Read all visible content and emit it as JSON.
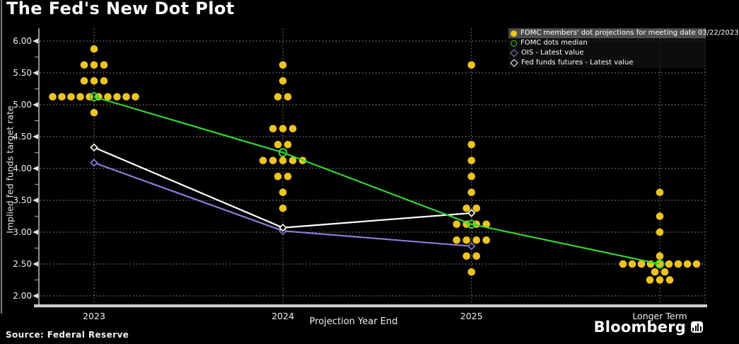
{
  "title": "The Fed's New Dot Plot",
  "source": "Source: Federal Reserve",
  "branding": {
    "logo": "Bloomberg",
    "logo_icon": "bar-chart-icon"
  },
  "legend": {
    "items": [
      {
        "marker": "filled-circle",
        "color": "#edc41e",
        "label": "FOMC members' dot projections for meeting date 03/22/2023",
        "highlighted": true
      },
      {
        "marker": "open-circle",
        "color": "#35d435",
        "label": "FOMC dots median",
        "highlighted": false
      },
      {
        "marker": "open-diamond",
        "color": "#8d7cd6",
        "label": "OIS - Latest value",
        "highlighted": false
      },
      {
        "marker": "open-diamond",
        "color": "#ffffff",
        "label": "Fed funds futures - Latest value",
        "highlighted": false
      }
    ]
  },
  "chart_data": {
    "type": "scatter",
    "title": "The Fed's New Dot Plot",
    "xlabel": "Projection Year End",
    "ylabel": "Implied fed funds target rate",
    "ylim": [
      2.0,
      6.0
    ],
    "ytick_step": 0.5,
    "ytick_labels": [
      "6.00",
      "5.50",
      "5.00",
      "4.50",
      "4.00",
      "3.50",
      "3.00",
      "2.50",
      "2.00"
    ],
    "categories": [
      "2023",
      "2024",
      "2025",
      "Longer Term"
    ],
    "grid": "dotted",
    "grid_color": "#c8c8c8",
    "axis_color": "#cccccc",
    "series": [
      {
        "name": "FOMC members' dot projections for meeting date 03/22/2023",
        "type": "dot-cluster",
        "color": "#edc41e",
        "clusters": [
          {
            "category": "2023",
            "dots": [
              {
                "value": 5.875,
                "count": 1
              },
              {
                "value": 5.625,
                "count": 3
              },
              {
                "value": 5.375,
                "count": 3
              },
              {
                "value": 5.125,
                "count": 10
              },
              {
                "value": 4.875,
                "count": 1
              }
            ]
          },
          {
            "category": "2024",
            "dots": [
              {
                "value": 5.625,
                "count": 1
              },
              {
                "value": 5.375,
                "count": 1
              },
              {
                "value": 5.125,
                "count": 2
              },
              {
                "value": 4.625,
                "count": 3
              },
              {
                "value": 4.375,
                "count": 2
              },
              {
                "value": 4.125,
                "count": 5
              },
              {
                "value": 3.875,
                "count": 2
              },
              {
                "value": 3.625,
                "count": 1
              },
              {
                "value": 3.375,
                "count": 1
              }
            ]
          },
          {
            "category": "2025",
            "dots": [
              {
                "value": 5.625,
                "count": 1
              },
              {
                "value": 4.375,
                "count": 1
              },
              {
                "value": 4.125,
                "count": 1
              },
              {
                "value": 3.875,
                "count": 1
              },
              {
                "value": 3.625,
                "count": 1
              },
              {
                "value": 3.375,
                "count": 2
              },
              {
                "value": 3.125,
                "count": 4
              },
              {
                "value": 2.875,
                "count": 4
              },
              {
                "value": 2.625,
                "count": 2
              },
              {
                "value": 2.375,
                "count": 1
              }
            ]
          },
          {
            "category": "Longer Term",
            "dots": [
              {
                "value": 3.625,
                "count": 1
              },
              {
                "value": 3.25,
                "count": 1
              },
              {
                "value": 3.0,
                "count": 1
              },
              {
                "value": 2.625,
                "count": 1
              },
              {
                "value": 2.5,
                "count": 9
              },
              {
                "value": 2.375,
                "count": 2
              },
              {
                "value": 2.25,
                "count": 3
              }
            ]
          }
        ]
      },
      {
        "name": "FOMC dots median",
        "type": "line",
        "marker": "open-circle",
        "color": "#35d435",
        "values": [
          5.125,
          4.25,
          3.125,
          2.5
        ]
      },
      {
        "name": "OIS - Latest value",
        "type": "line",
        "marker": "open-diamond",
        "color": "#8d7cd6",
        "values": [
          4.09,
          3.02,
          2.78,
          null
        ]
      },
      {
        "name": "Fed funds futures - Latest value",
        "type": "line",
        "marker": "open-diamond",
        "color": "#ffffff",
        "values": [
          4.33,
          3.07,
          3.3,
          null
        ]
      }
    ]
  }
}
